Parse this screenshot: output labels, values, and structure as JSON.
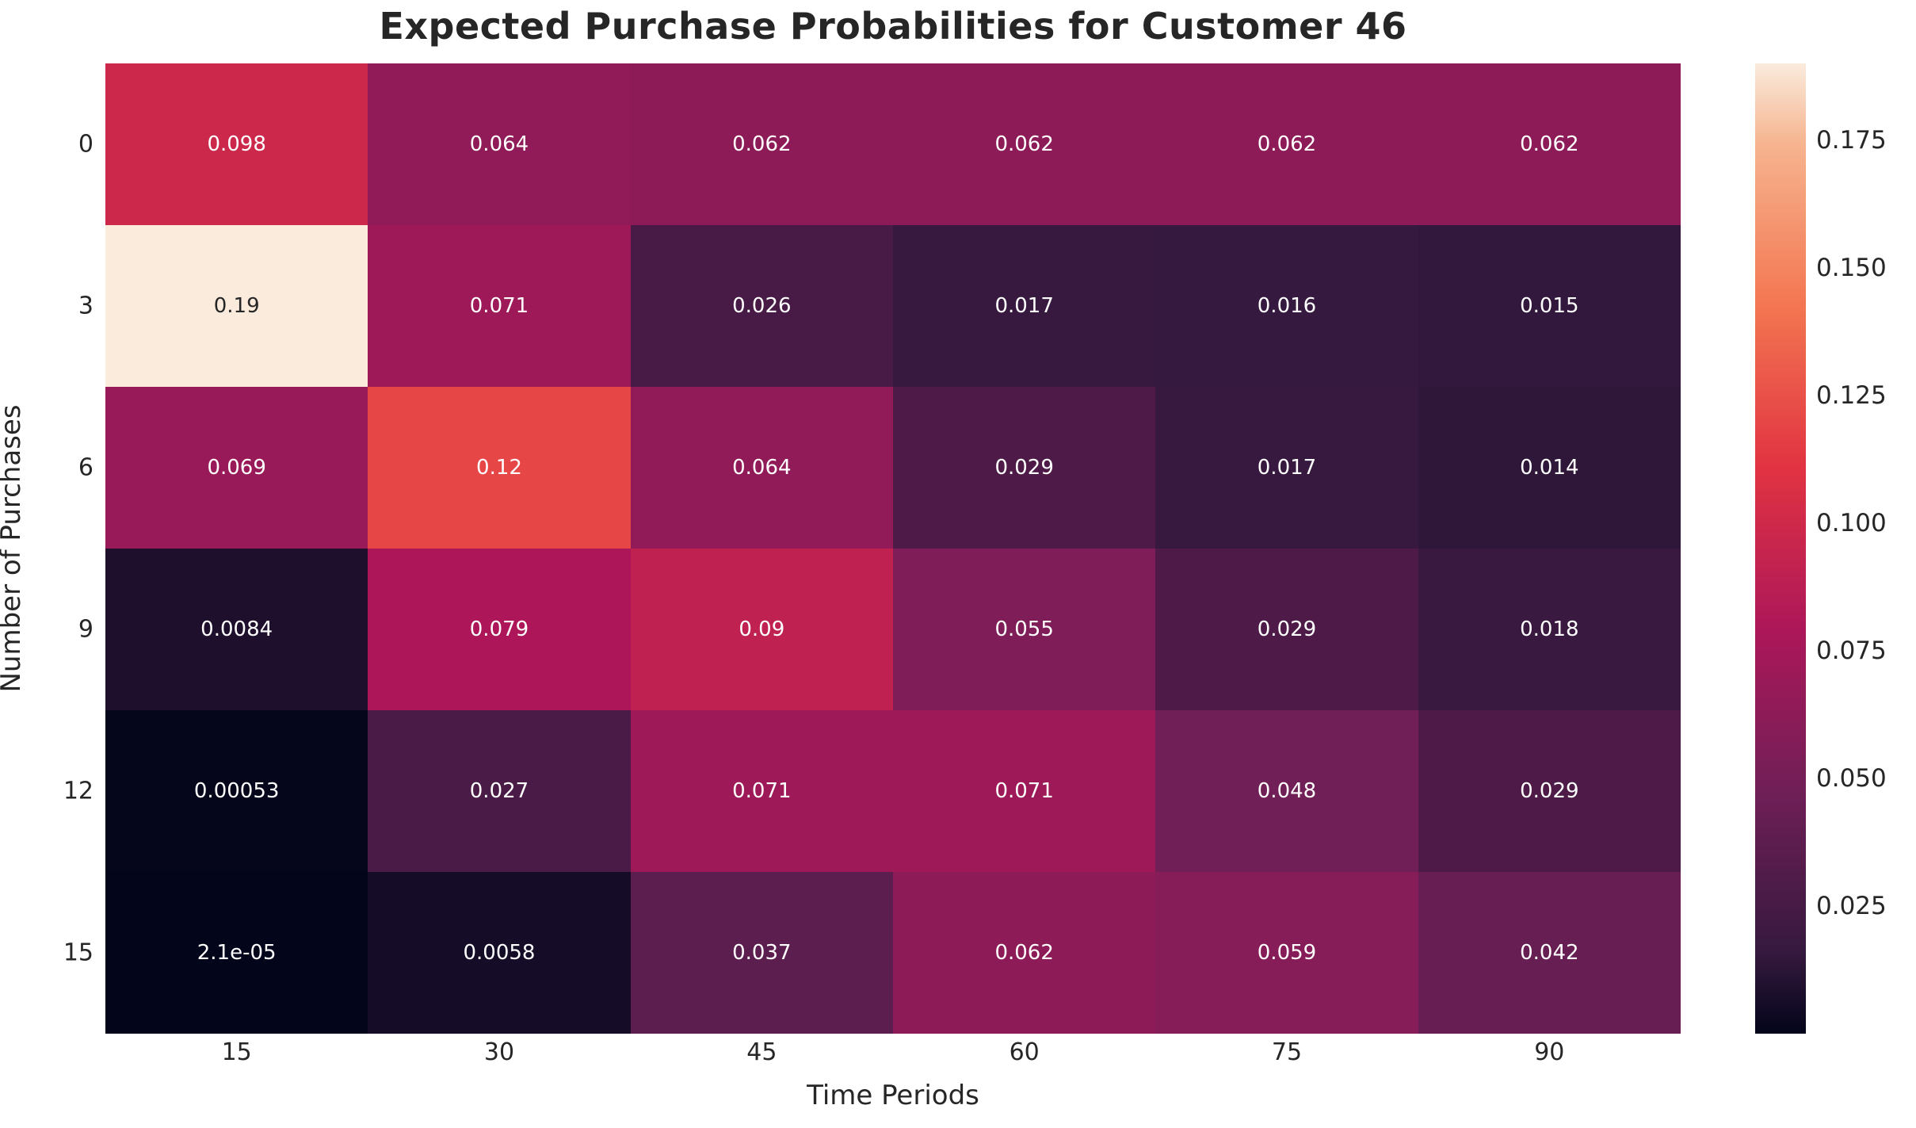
{
  "chart_data": {
    "type": "heatmap",
    "title": "Expected Purchase Probabilities for Customer 46",
    "xlabel": "Time Periods",
    "ylabel": "Number of Purchases",
    "x_ticklabels": [
      "15",
      "30",
      "45",
      "60",
      "75",
      "90"
    ],
    "y_ticklabels": [
      "0",
      "3",
      "6",
      "9",
      "12",
      "15"
    ],
    "values": [
      [
        0.098,
        0.064,
        0.062,
        0.062,
        0.062,
        0.062
      ],
      [
        0.19,
        0.071,
        0.026,
        0.017,
        0.016,
        0.015
      ],
      [
        0.069,
        0.12,
        0.064,
        0.029,
        0.017,
        0.014
      ],
      [
        0.0084,
        0.079,
        0.09,
        0.055,
        0.029,
        0.018
      ],
      [
        0.00053,
        0.027,
        0.071,
        0.071,
        0.048,
        0.029
      ],
      [
        2.1e-05,
        0.0058,
        0.037,
        0.062,
        0.059,
        0.042
      ]
    ],
    "annotations": [
      [
        "0.098",
        "0.064",
        "0.062",
        "0.062",
        "0.062",
        "0.062"
      ],
      [
        "0.19",
        "0.071",
        "0.026",
        "0.017",
        "0.016",
        "0.015"
      ],
      [
        "0.069",
        "0.12",
        "0.064",
        "0.029",
        "0.017",
        "0.014"
      ],
      [
        "0.0084",
        "0.079",
        "0.09",
        "0.055",
        "0.029",
        "0.018"
      ],
      [
        "0.00053",
        "0.027",
        "0.071",
        "0.071",
        "0.048",
        "0.029"
      ],
      [
        "2.1e-05",
        "0.0058",
        "0.037",
        "0.062",
        "0.059",
        "0.042"
      ]
    ],
    "vmin": 2.1e-05,
    "vmax": 0.19,
    "colormap": "rocket",
    "colormap_anchors": [
      {
        "pos": 0.0,
        "color": "#03051A"
      },
      {
        "pos": 0.083,
        "color": "#35193E"
      },
      {
        "pos": 0.25,
        "color": "#701F57"
      },
      {
        "pos": 0.417,
        "color": "#AD1759"
      },
      {
        "pos": 0.583,
        "color": "#E13342"
      },
      {
        "pos": 0.75,
        "color": "#F37651"
      },
      {
        "pos": 0.917,
        "color": "#F6B48F"
      },
      {
        "pos": 1.0,
        "color": "#FAEBDD"
      }
    ],
    "colorbar_tick_labels": [
      "0.175",
      "0.150",
      "0.125",
      "0.100",
      "0.075",
      "0.050",
      "0.025"
    ],
    "colorbar_tick_values": [
      0.175,
      0.15,
      0.125,
      0.1,
      0.075,
      0.05,
      0.025
    ],
    "annotation_text_color_on_dark": "#ffffff",
    "annotation_text_color_on_light": "#262626",
    "axis_text_color": "#262626",
    "grid": false,
    "legend_position": "right-colorbar"
  }
}
